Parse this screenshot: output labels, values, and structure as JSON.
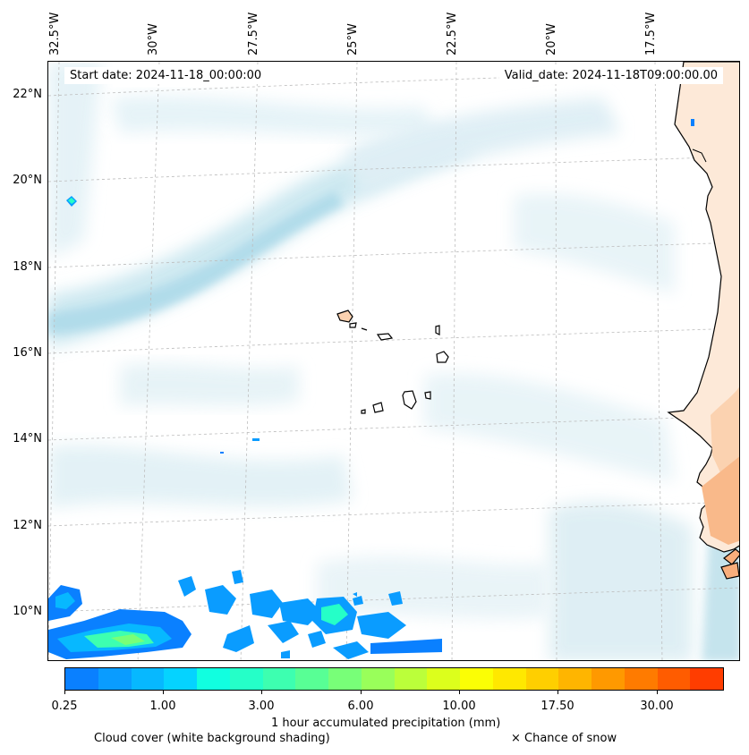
{
  "map": {
    "start_date": "Start date: 2024-11-18_00:00:00",
    "valid_date": "Valid_date: 2024-11-18T09:00:00.00",
    "longitude_labels": [
      "32.5°W",
      "30°W",
      "27.5°W",
      "25°W",
      "22.5°W",
      "20°W",
      "17.5°W"
    ],
    "latitude_labels": [
      "22°N",
      "20°N",
      "18°N",
      "16°N",
      "14°N",
      "12°N",
      "10°N"
    ]
  },
  "colorbar": {
    "tick_labels": [
      "0.25",
      "1.00",
      "3.00",
      "6.00",
      "10.00",
      "17.50",
      "30.00"
    ],
    "colors": [
      "#0a80ff",
      "#0a9cff",
      "#07b8ff",
      "#05d3ff",
      "#11ffe0",
      "#25ffc8",
      "#3dffb0",
      "#58ff95",
      "#78ff78",
      "#99ff5a",
      "#bbff3a",
      "#dcff1c",
      "#fbfe05",
      "#ffe800",
      "#ffcf00",
      "#ffb500",
      "#ff9900",
      "#ff7b00",
      "#ff5c00",
      "#ff3d00"
    ],
    "label": "1 hour accumulated precipitation (mm)"
  },
  "legend": {
    "cloud_cover": "Cloud cover (white background shading)",
    "snow": "× Chance of snow"
  }
}
